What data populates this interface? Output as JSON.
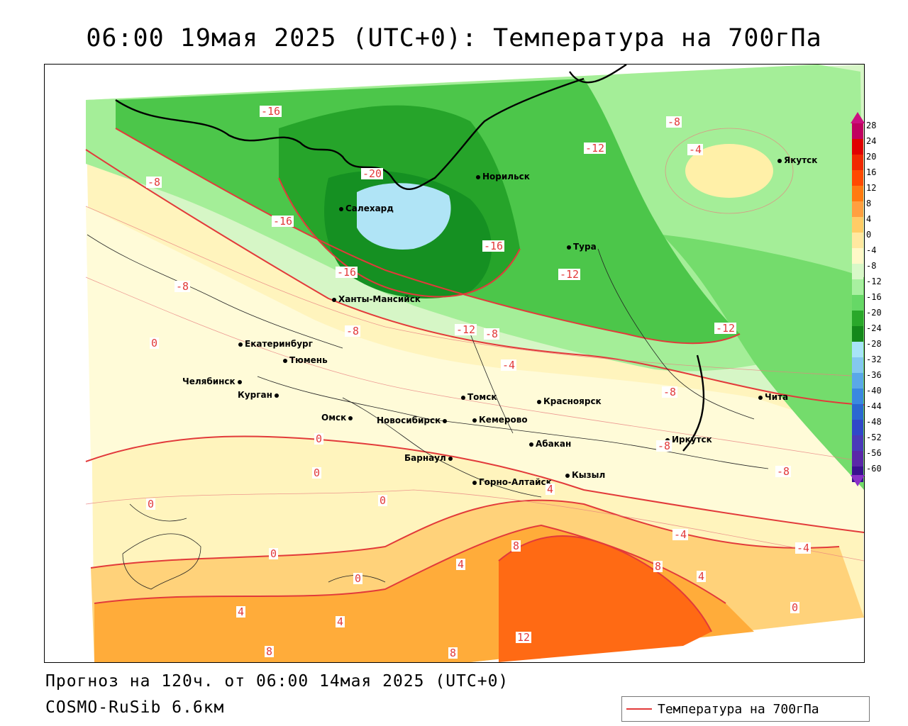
{
  "title": "06:00 19мая 2025 (UTC+0): Температура на 700гПа",
  "forecast_line": "Прогноз на 120ч. от 06:00 14мая 2025 (UTC+0)",
  "model_line": "COSMO-RuSib 6.6км",
  "legend": {
    "label": "Температура на 700гПа",
    "line_color": "#e23a3a"
  },
  "cities": [
    {
      "name": "Якутск"
    },
    {
      "name": "Норильск"
    },
    {
      "name": "Салехард"
    },
    {
      "name": "Тура"
    },
    {
      "name": "Ханты-Мансийск"
    },
    {
      "name": "Екатеринбург"
    },
    {
      "name": "Тюмень"
    },
    {
      "name": "Челябинск"
    },
    {
      "name": "Курган"
    },
    {
      "name": "Омск"
    },
    {
      "name": "Новосибирск"
    },
    {
      "name": "Томск"
    },
    {
      "name": "Кемерово"
    },
    {
      "name": "Красноярск"
    },
    {
      "name": "Абакан"
    },
    {
      "name": "Барнаул"
    },
    {
      "name": "Горно-Алтайск"
    },
    {
      "name": "Кызыл"
    },
    {
      "name": "Иркутск"
    },
    {
      "name": "Чита"
    }
  ],
  "contour_labels": [
    "-16",
    "-8",
    "-20",
    "-16",
    "-16",
    "-16",
    "-12",
    "-12",
    "-8",
    "-12",
    "-8",
    "-4",
    "-8",
    "-12",
    "-8",
    "-4",
    "0",
    "-8",
    "0",
    "0",
    "0",
    "0",
    "0",
    "4",
    "4",
    "8",
    "8",
    "4",
    "0",
    "-4",
    "0",
    "4",
    "4",
    "12",
    "8",
    "8",
    "-8",
    "-4",
    "-8"
  ],
  "colorbar": {
    "ticks": [
      "28",
      "24",
      "20",
      "16",
      "12",
      "8",
      "4",
      "0",
      "-4",
      "-8",
      "-12",
      "-16",
      "-20",
      "-24",
      "-28",
      "-32",
      "-36",
      "-40",
      "-44",
      "-48",
      "-52",
      "-56",
      "-60"
    ],
    "colors": [
      "#c00060",
      "#e00000",
      "#f02800",
      "#ff4a00",
      "#ff7a10",
      "#ffa040",
      "#ffcc66",
      "#ffe8a0",
      "#fff8c8",
      "#d8f8c8",
      "#a8f0a0",
      "#66d866",
      "#2aa82a",
      "#14881a",
      "#a8e4f8",
      "#84c8f0",
      "#5aa8e8",
      "#3a88e0",
      "#2a68d0",
      "#3048c8",
      "#4a3ab8",
      "#5a28a8",
      "#3a1090"
    ],
    "top_color": "#cc1080",
    "bottom_color": "#8a30c8"
  }
}
